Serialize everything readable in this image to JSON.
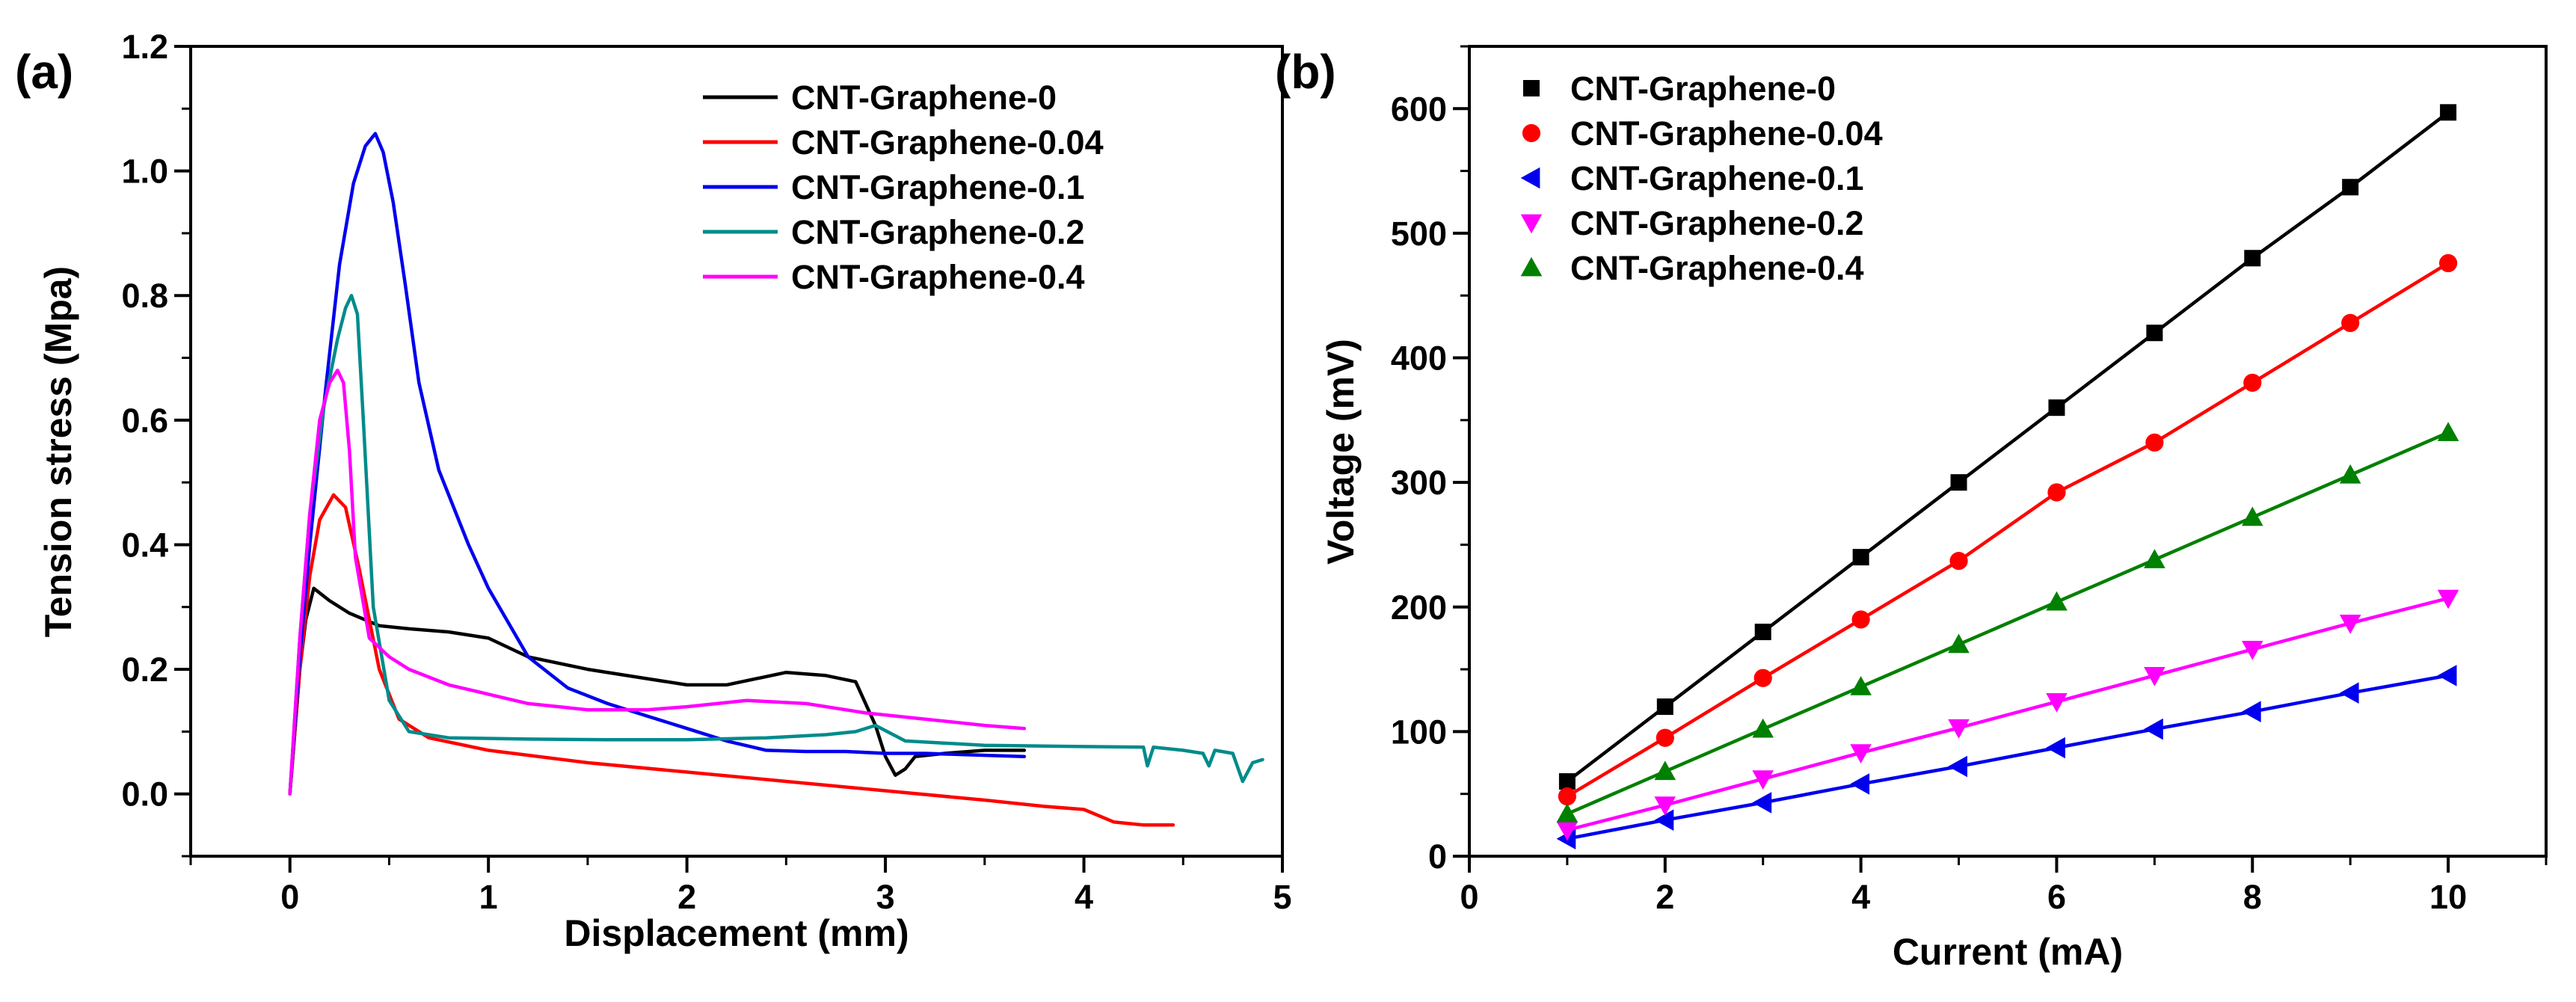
{
  "chart_data": [
    {
      "type": "line",
      "panel_label": "(a)",
      "xlabel": "Displacement (mm)",
      "ylabel": "Tension stress (Mpa)",
      "xlim": [
        -0.5,
        5
      ],
      "ylim": [
        -0.1,
        1.2
      ],
      "xticks": [
        0,
        1,
        2,
        3,
        4,
        5
      ],
      "yticks": [
        0.0,
        0.2,
        0.4,
        0.6,
        0.8,
        1.0,
        1.2
      ],
      "ytick_labels": [
        "0.0",
        "0.2",
        "0.4",
        "0.6",
        "0.8",
        "1.0",
        "1.2"
      ],
      "legend_position": "top-right",
      "series": [
        {
          "name": "CNT-Graphene-0",
          "color": "#000000",
          "x": [
            0,
            0.05,
            0.08,
            0.12,
            0.2,
            0.3,
            0.45,
            0.6,
            0.8,
            1.0,
            1.2,
            1.5,
            1.8,
            2.0,
            2.2,
            2.35,
            2.5,
            2.7,
            2.85,
            2.95,
            3.0,
            3.05,
            3.1,
            3.15,
            3.3,
            3.5,
            3.7
          ],
          "y": [
            0,
            0.2,
            0.28,
            0.33,
            0.31,
            0.29,
            0.27,
            0.265,
            0.26,
            0.25,
            0.22,
            0.2,
            0.185,
            0.175,
            0.175,
            0.185,
            0.195,
            0.19,
            0.18,
            0.11,
            0.06,
            0.03,
            0.04,
            0.06,
            0.065,
            0.07,
            0.07
          ]
        },
        {
          "name": "CNT-Graphene-0.04",
          "color": "#ff0000",
          "x": [
            0,
            0.05,
            0.1,
            0.15,
            0.22,
            0.28,
            0.35,
            0.45,
            0.55,
            0.7,
            1.0,
            1.5,
            2.0,
            2.5,
            3.0,
            3.5,
            3.8,
            4.0,
            4.15,
            4.3,
            4.45
          ],
          "y": [
            0,
            0.2,
            0.35,
            0.44,
            0.48,
            0.46,
            0.36,
            0.2,
            0.12,
            0.09,
            0.07,
            0.05,
            0.035,
            0.02,
            0.005,
            -0.01,
            -0.02,
            -0.025,
            -0.045,
            -0.05,
            -0.05
          ]
        },
        {
          "name": "CNT-Graphene-0.1",
          "color": "#0000ee",
          "x": [
            0,
            0.05,
            0.1,
            0.18,
            0.25,
            0.32,
            0.38,
            0.43,
            0.47,
            0.52,
            0.58,
            0.65,
            0.75,
            0.9,
            1.0,
            1.2,
            1.4,
            1.6,
            1.8,
            2.0,
            2.2,
            2.4,
            2.6,
            2.8,
            3.0,
            3.2,
            3.4,
            3.7
          ],
          "y": [
            0,
            0.22,
            0.4,
            0.65,
            0.85,
            0.98,
            1.04,
            1.06,
            1.03,
            0.95,
            0.82,
            0.66,
            0.52,
            0.4,
            0.33,
            0.22,
            0.17,
            0.145,
            0.125,
            0.105,
            0.085,
            0.07,
            0.068,
            0.068,
            0.065,
            0.065,
            0.063,
            0.06
          ]
        },
        {
          "name": "CNT-Graphene-0.2",
          "color": "#008b8b",
          "x": [
            0,
            0.05,
            0.1,
            0.17,
            0.24,
            0.28,
            0.31,
            0.34,
            0.37,
            0.42,
            0.5,
            0.6,
            0.8,
            1.2,
            1.6,
            2.0,
            2.4,
            2.7,
            2.85,
            2.95,
            3.1,
            3.5,
            4.0,
            4.3,
            4.32,
            4.35,
            4.5,
            4.6,
            4.63,
            4.66,
            4.75,
            4.8,
            4.85,
            4.9
          ],
          "y": [
            0,
            0.25,
            0.45,
            0.62,
            0.73,
            0.78,
            0.8,
            0.77,
            0.6,
            0.3,
            0.15,
            0.1,
            0.09,
            0.088,
            0.087,
            0.087,
            0.09,
            0.095,
            0.1,
            0.11,
            0.085,
            0.078,
            0.076,
            0.075,
            0.045,
            0.075,
            0.07,
            0.065,
            0.045,
            0.07,
            0.065,
            0.02,
            0.05,
            0.055
          ]
        },
        {
          "name": "CNT-Graphene-0.4",
          "color": "#ff00ff",
          "x": [
            0,
            0.05,
            0.1,
            0.15,
            0.2,
            0.24,
            0.27,
            0.3,
            0.33,
            0.4,
            0.5,
            0.6,
            0.8,
            1.0,
            1.2,
            1.5,
            1.8,
            2.0,
            2.3,
            2.6,
            2.9,
            3.2,
            3.5,
            3.7
          ],
          "y": [
            0,
            0.25,
            0.45,
            0.6,
            0.66,
            0.68,
            0.66,
            0.55,
            0.38,
            0.25,
            0.22,
            0.2,
            0.175,
            0.16,
            0.145,
            0.135,
            0.135,
            0.14,
            0.15,
            0.145,
            0.13,
            0.12,
            0.11,
            0.105
          ]
        }
      ]
    },
    {
      "type": "scatter",
      "panel_label": "(b)",
      "xlabel": "Current (mA)",
      "ylabel": "Voltage (mV)",
      "xlim": [
        0,
        11
      ],
      "ylim": [
        0,
        650
      ],
      "xticks": [
        0,
        2,
        4,
        6,
        8,
        10
      ],
      "yticks": [
        0,
        100,
        200,
        300,
        400,
        500,
        600
      ],
      "legend_position": "top-left",
      "x": [
        1,
        2,
        3,
        4,
        5,
        6,
        7,
        8,
        9,
        10
      ],
      "series": [
        {
          "name": "CNT-Graphene-0",
          "color": "#000000",
          "marker": "square",
          "values": [
            60,
            120,
            180,
            240,
            300,
            360,
            420,
            480,
            537,
            597
          ]
        },
        {
          "name": "CNT-Graphene-0.04",
          "color": "#ff0000",
          "marker": "circle",
          "values": [
            48,
            95,
            143,
            190,
            237,
            292,
            332,
            380,
            428,
            476
          ]
        },
        {
          "name": "CNT-Graphene-0.1",
          "color": "#0000ee",
          "marker": "triangle-left",
          "values": [
            14,
            29,
            43,
            58,
            72,
            87,
            102,
            116,
            131,
            145
          ]
        },
        {
          "name": "CNT-Graphene-0.2",
          "color": "#ff00ff",
          "marker": "triangle-down",
          "values": [
            21,
            41,
            62,
            83,
            103,
            124,
            145,
            166,
            187,
            207
          ]
        },
        {
          "name": "CNT-Graphene-0.4",
          "color": "#008000",
          "marker": "triangle-up",
          "values": [
            34,
            68,
            102,
            136,
            170,
            204,
            238,
            272,
            306,
            340
          ]
        }
      ]
    }
  ]
}
